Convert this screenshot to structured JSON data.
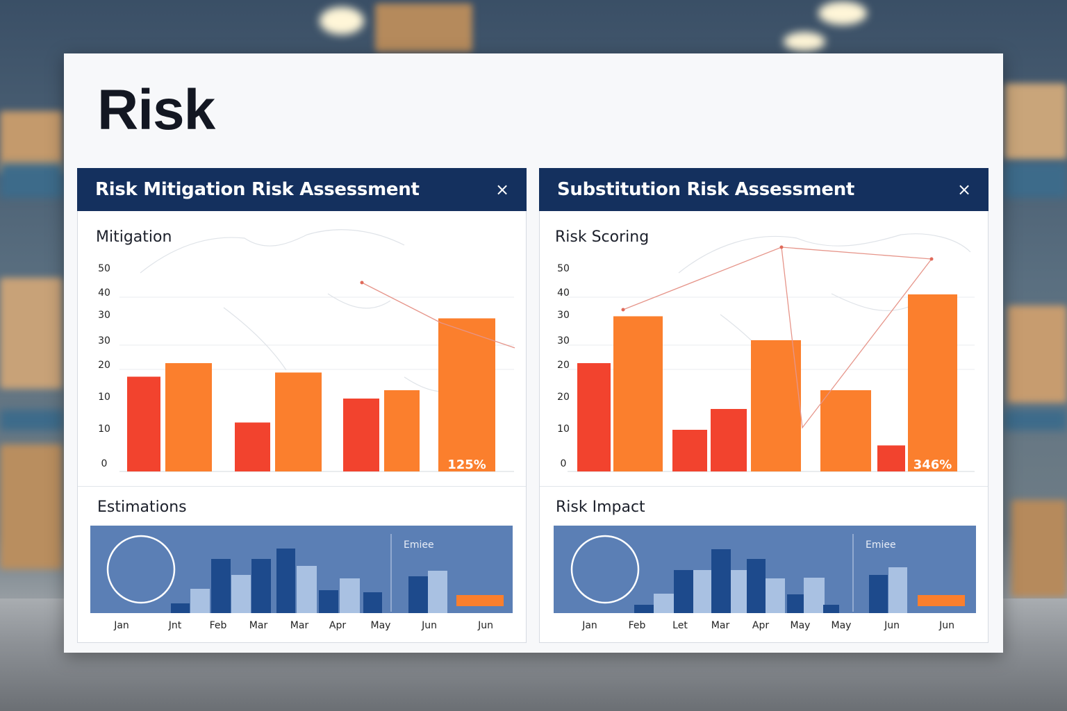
{
  "board": {
    "title": "Risk"
  },
  "colors": {
    "header": "#14305e",
    "red": "#f2432e",
    "orange": "#fb7f2d",
    "navy": "#1d4a8c",
    "light_blue": "#a9c1e2",
    "est_bg": "#5b7fb5"
  },
  "panels": [
    {
      "title": "Risk Mitigation Risk Assessment",
      "close_icon": "×",
      "top_section": {
        "title": "Mitigation",
        "y_ticks": [
          "50",
          "40",
          "30",
          "30",
          "20",
          "10",
          "10",
          "0"
        ],
        "bars": [
          {
            "color": "red",
            "level": 0.455
          },
          {
            "color": "orange",
            "level": 0.52
          },
          {
            "color": "red",
            "level": 0.235
          },
          {
            "color": "orange",
            "level": 0.475
          },
          {
            "color": "red",
            "level": 0.35
          },
          {
            "color": "orange",
            "level": 0.39
          },
          {
            "color": "orange",
            "level": 0.735,
            "label": "125%"
          }
        ]
      },
      "bottom_section": {
        "title": "Estimations",
        "legend_label": "Emiee",
        "x_labels": [
          "Jan",
          "Jnt",
          "Feb",
          "Mar",
          "Mar",
          "Apr",
          "May",
          "Jun",
          "Jun"
        ]
      }
    },
    {
      "title": "Substitution Risk Assessment",
      "close_icon": "×",
      "top_section": {
        "title": "Risk Scoring",
        "y_ticks": [
          "50",
          "40",
          "30",
          "30",
          "20",
          "20",
          "10",
          "0"
        ],
        "bars": [
          {
            "color": "red",
            "level": 0.52
          },
          {
            "color": "orange",
            "level": 0.745
          },
          {
            "color": "red",
            "level": 0.2
          },
          {
            "color": "red",
            "level": 0.3
          },
          {
            "color": "orange",
            "level": 0.63
          },
          {
            "color": "orange",
            "level": 0.39
          },
          {
            "color": "red",
            "level": 0.125
          },
          {
            "color": "orange",
            "level": 0.85,
            "label": "346%"
          }
        ]
      },
      "bottom_section": {
        "title": "Risk Impact",
        "legend_label": "Emiee",
        "x_labels": [
          "Jan",
          "Feb",
          "Let",
          "Mar",
          "Apr",
          "May",
          "May",
          "Jun",
          "Jun"
        ]
      }
    }
  ]
}
